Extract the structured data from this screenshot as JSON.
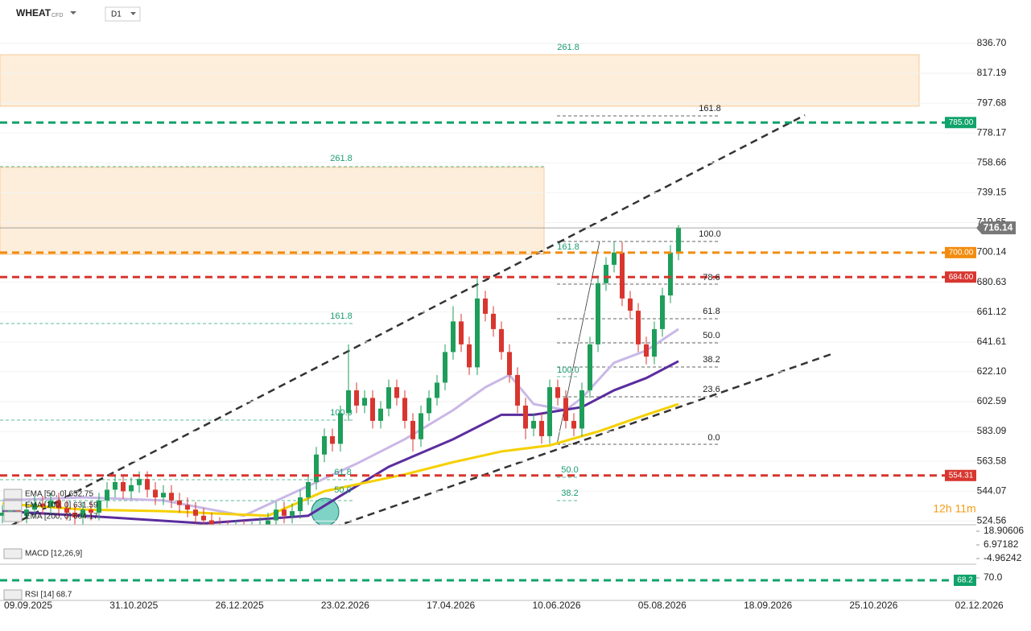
{
  "header": {
    "symbol": "WHEAT",
    "type": "CFD",
    "timeframe": "D1"
  },
  "chart_data": [
    {
      "type": "candlestick",
      "xticks": [
        "09.09.2025",
        "31.10.2025",
        "26.12.2025",
        "23.02.2026",
        "17.04.2026",
        "10.06.2026",
        "05.08.2026",
        "18.09.2026",
        "25.10.2026",
        "02.12.2026"
      ],
      "ylim": [
        522.1,
        865.1
      ],
      "yticks": [
        {
          "value": 836.7,
          "label": "836.70"
        },
        {
          "value": 817.19,
          "label": "817.19"
        },
        {
          "value": 797.68,
          "label": "797.68"
        },
        {
          "value": 778.17,
          "label": "778.17"
        },
        {
          "value": 758.66,
          "label": "758.66"
        },
        {
          "value": 739.15,
          "label": "739.15"
        },
        {
          "value": 719.65,
          "label": "719.65"
        },
        {
          "value": 700.14,
          "label": "700.14"
        },
        {
          "value": 680.63,
          "label": "680.63"
        },
        {
          "value": 661.12,
          "label": "661.12"
        },
        {
          "value": 641.61,
          "label": "641.61"
        },
        {
          "value": 622.1,
          "label": "622.10"
        },
        {
          "value": 602.59,
          "label": "602.59"
        },
        {
          "value": 583.09,
          "label": "583.09"
        },
        {
          "value": 563.58,
          "label": "563.58"
        },
        {
          "value": 544.07,
          "label": "544.07"
        },
        {
          "value": 524.56,
          "label": "524.56"
        }
      ],
      "up_color": "#1e9e5a",
      "down_color": "#d8362f",
      "open": [
        528,
        530,
        533,
        528,
        532,
        536,
        534,
        538,
        533,
        530,
        527,
        532,
        530,
        538,
        545,
        550,
        544,
        548,
        552,
        545,
        540,
        543,
        538,
        535,
        532,
        528,
        525,
        522,
        520,
        518,
        520,
        517,
        519,
        522,
        525,
        532,
        528,
        531,
        540,
        550,
        568,
        580,
        575,
        595,
        610,
        600,
        605,
        590,
        598,
        612,
        605,
        590,
        578,
        595,
        605,
        615,
        635,
        655,
        640,
        625,
        670,
        660,
        650,
        635,
        620,
        600,
        585,
        590,
        580,
        612,
        605,
        590,
        585,
        610,
        640,
        680,
        692,
        700,
        670,
        662,
        640,
        632,
        650,
        672,
        700
      ],
      "high": [
        535,
        538,
        538,
        537,
        541,
        541,
        543,
        543,
        538,
        535,
        537,
        537,
        543,
        550,
        555,
        555,
        553,
        557,
        557,
        550,
        548,
        548,
        543,
        540,
        537,
        533,
        530,
        527,
        525,
        525,
        525,
        524,
        527,
        530,
        537,
        537,
        536,
        545,
        555,
        573,
        585,
        585,
        600,
        640,
        615,
        610,
        610,
        603,
        617,
        617,
        610,
        595,
        600,
        610,
        620,
        640,
        665,
        660,
        645,
        683,
        675,
        665,
        655,
        640,
        625,
        605,
        595,
        595,
        617,
        617,
        610,
        595,
        615,
        645,
        685,
        697,
        707,
        707,
        675,
        667,
        645,
        655,
        677,
        705,
        718
      ],
      "low": [
        523,
        525,
        523,
        523,
        527,
        529,
        529,
        528,
        525,
        522,
        522,
        525,
        525,
        533,
        540,
        539,
        539,
        543,
        540,
        535,
        535,
        533,
        530,
        527,
        523,
        520,
        517,
        515,
        513,
        513,
        512,
        512,
        514,
        517,
        520,
        523,
        523,
        526,
        535,
        545,
        563,
        570,
        570,
        590,
        595,
        595,
        585,
        585,
        593,
        600,
        585,
        570,
        573,
        590,
        600,
        610,
        630,
        635,
        620,
        620,
        655,
        645,
        630,
        615,
        595,
        578,
        580,
        575,
        575,
        600,
        585,
        580,
        580,
        605,
        635,
        675,
        687,
        665,
        657,
        635,
        627,
        627,
        645,
        667,
        695
      ],
      "close": [
        530,
        533,
        528,
        532,
        536,
        534,
        538,
        533,
        530,
        527,
        532,
        530,
        538,
        545,
        550,
        544,
        548,
        552,
        545,
        540,
        543,
        538,
        535,
        532,
        528,
        525,
        522,
        520,
        518,
        520,
        517,
        519,
        522,
        525,
        532,
        528,
        531,
        540,
        550,
        568,
        580,
        575,
        595,
        610,
        600,
        605,
        590,
        598,
        612,
        605,
        590,
        578,
        595,
        605,
        615,
        635,
        655,
        640,
        625,
        670,
        660,
        650,
        635,
        620,
        600,
        585,
        590,
        580,
        612,
        605,
        590,
        585,
        610,
        640,
        680,
        692,
        700,
        670,
        662,
        640,
        632,
        650,
        672,
        700,
        716.14
      ],
      "ema": [
        {
          "name": "EMA [50, 0] 652.75",
          "color": "#c9b8e6",
          "x": [
            0,
            10,
            20,
            30,
            37,
            44,
            50,
            56,
            60,
            63,
            66,
            70,
            72,
            76,
            80,
            84
          ],
          "values": [
            538,
            540,
            538,
            528,
            545,
            562,
            578,
            597,
            612,
            620,
            601,
            597,
            605,
            628,
            636,
            650
          ]
        },
        {
          "name": "EMA [100, 0] 631.59",
          "color": "#5b2d9e",
          "x": [
            0,
            10,
            25,
            38,
            42,
            48,
            56,
            62,
            66,
            72,
            76,
            80,
            84
          ],
          "values": [
            531,
            528,
            523,
            528,
            541,
            560,
            578,
            594,
            594,
            599,
            610,
            618,
            629
          ]
        },
        {
          "name": "EMA [200, 0] 604.17",
          "color": "#f5d000",
          "x": [
            0,
            10,
            20,
            33,
            40,
            50,
            56,
            62,
            68,
            74,
            80,
            84
          ],
          "values": [
            536,
            532,
            531,
            528,
            544,
            555,
            563,
            570,
            574,
            583,
            594,
            601
          ]
        }
      ],
      "levels": [
        {
          "value": 785,
          "label": "785.00",
          "color": "#10a36b"
        },
        {
          "value": 700,
          "label": "700.00",
          "color": "#f28c0f"
        },
        {
          "value": 684,
          "label": "684.00",
          "color": "#d8362f"
        },
        {
          "value": 554.31,
          "label": "554.31",
          "color": "#d8362f"
        }
      ],
      "last_price": 716.14,
      "fib_labels": [
        "261.8",
        "161.8",
        "261.8",
        "100.0",
        "161.8",
        "78.6",
        "61.8",
        "161.8",
        "50.0",
        "38.2",
        "100.0",
        "23.6",
        "100.0",
        "0.0",
        "50.0",
        "61.8",
        "50.0",
        "38.2"
      ],
      "countdown": "12h 11m"
    },
    {
      "type": "macd",
      "title": "MACD [12,26,9]",
      "ylim": [
        -9.18,
        23.82
      ],
      "yticks": [
        {
          "value": 18.90606,
          "label": "18.90606"
        },
        {
          "value": 6.97182,
          "label": "6.97182"
        },
        {
          "value": -4.96242,
          "label": "-4.96242"
        }
      ]
    },
    {
      "type": "rsi",
      "title": "RSI [14] 68.7",
      "ylim": [
        53.2,
        79.6
      ],
      "yticks": [
        {
          "value": 70,
          "label": "70.0"
        }
      ],
      "levels": [
        {
          "value": 68.2,
          "label": "68.2",
          "color": "#10a36b"
        }
      ]
    }
  ]
}
